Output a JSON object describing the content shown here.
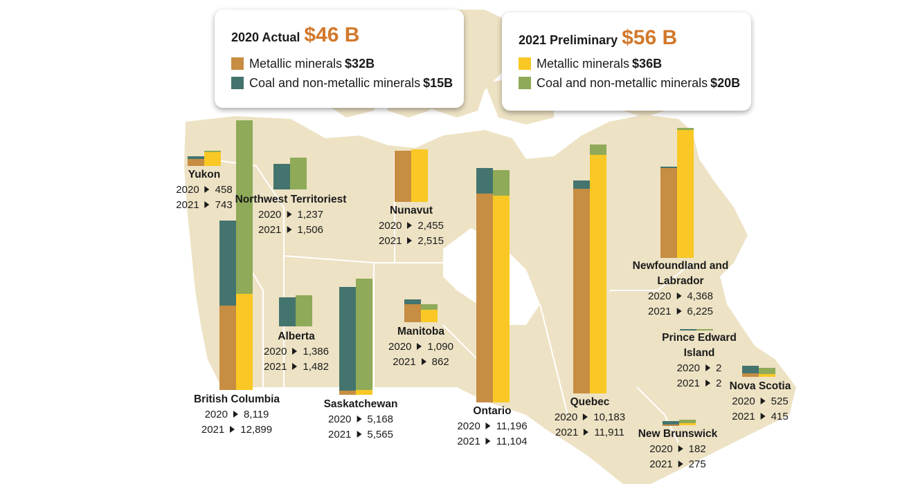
{
  "colors": {
    "land": "#ede2c4",
    "border_lines": "#ffffff",
    "metallic_2020": "#c78d42",
    "nonmetallic_2020": "#44746e",
    "metallic_2021": "#f9c824",
    "nonmetallic_2021": "#8faa58",
    "total_accent": "#d2782a"
  },
  "legend_2020": {
    "title": "2020 Actual",
    "total": "$46 B",
    "items": [
      {
        "label": "Metallic minerals",
        "value": "$32B"
      },
      {
        "label": "Coal and non-metallic minerals",
        "value": "$15B"
      }
    ]
  },
  "legend_2021": {
    "title": "2021 Preliminary",
    "total": "$56 B",
    "items": [
      {
        "label": "Metallic minerals",
        "value": "$36B"
      },
      {
        "label": "Coal and non-metallic minerals",
        "value": "$20B"
      }
    ]
  },
  "chart_data": {
    "type": "bar",
    "title": "",
    "units": "$ millions",
    "series": [
      {
        "name": "Metallic minerals (2020)"
      },
      {
        "name": "Coal and non-metallic minerals (2020)"
      },
      {
        "name": "Metallic minerals (2021)"
      },
      {
        "name": "Coal and non-metallic minerals (2021)"
      }
    ],
    "provinces": [
      {
        "name": "Yukon",
        "y2020": "2020",
        "y2021": "2021",
        "v2020_text": "458",
        "v2021_text": "743",
        "v2020": 458,
        "v2021": 743,
        "metallic_2020": 330,
        "nonmetallic_2020": 128,
        "metallic_2021": 650,
        "nonmetallic_2021": 93
      },
      {
        "name": "Northwest Territoriest",
        "y2020": "2020",
        "y2021": "2021",
        "v2020_text": "1,237",
        "v2021_text": "1,506",
        "v2020": 1237,
        "v2021": 1506,
        "metallic_2020": 0,
        "nonmetallic_2020": 1237,
        "metallic_2021": 0,
        "nonmetallic_2021": 1506
      },
      {
        "name": "Nunavut",
        "y2020": "2020",
        "y2021": "2021",
        "v2020_text": "2,455",
        "v2021_text": "2,515",
        "v2020": 2455,
        "v2021": 2515,
        "metallic_2020": 2455,
        "nonmetallic_2020": 0,
        "metallic_2021": 2515,
        "nonmetallic_2021": 0
      },
      {
        "name": "British Columbia",
        "y2020": "2020",
        "y2021": "2021",
        "v2020_text": "8,119",
        "v2021_text": "12,899",
        "v2020": 8119,
        "v2021": 12899,
        "metallic_2020": 4050,
        "nonmetallic_2020": 4069,
        "metallic_2021": 4600,
        "nonmetallic_2021": 8299
      },
      {
        "name": "Alberta",
        "y2020": "2020",
        "y2021": "2021",
        "v2020_text": "1,386",
        "v2021_text": "1,482",
        "v2020": 1386,
        "v2021": 1482,
        "metallic_2020": 0,
        "nonmetallic_2020": 1386,
        "metallic_2021": 0,
        "nonmetallic_2021": 1482
      },
      {
        "name": "Saskatchewan",
        "y2020": "2020",
        "y2021": "2021",
        "v2020_text": "5,168",
        "v2021_text": "5,565",
        "v2020": 5168,
        "v2021": 5565,
        "metallic_2020": 200,
        "nonmetallic_2020": 4968,
        "metallic_2021": 230,
        "nonmetallic_2021": 5335
      },
      {
        "name": "Manitoba",
        "y2020": "2020",
        "y2021": "2021",
        "v2020_text": "1,090",
        "v2021_text": "862",
        "v2020": 1090,
        "v2021": 862,
        "metallic_2020": 870,
        "nonmetallic_2020": 220,
        "metallic_2021": 600,
        "nonmetallic_2021": 262
      },
      {
        "name": "Ontario",
        "y2020": "2020",
        "y2021": "2021",
        "v2020_text": "11,196",
        "v2021_text": "11,104",
        "v2020": 11196,
        "v2021": 11104,
        "metallic_2020": 10000,
        "nonmetallic_2020": 1196,
        "metallic_2021": 9900,
        "nonmetallic_2021": 1204
      },
      {
        "name": "Quebec",
        "y2020": "2020",
        "y2021": "2021",
        "v2020_text": "10,183",
        "v2021_text": "11,911",
        "v2020": 10183,
        "v2021": 11911,
        "metallic_2020": 9800,
        "nonmetallic_2020": 383,
        "metallic_2021": 11400,
        "nonmetallic_2021": 511
      },
      {
        "name": "Newfoundland and Labrador",
        "y2020": "2020",
        "y2021": "2021",
        "v2020_text": "4,368",
        "v2021_text": "6,225",
        "v2020": 4368,
        "v2021": 6225,
        "metallic_2020": 4300,
        "nonmetallic_2020": 68,
        "metallic_2021": 6125,
        "nonmetallic_2021": 100
      },
      {
        "name": "Prince Edward Island",
        "y2020": "2020",
        "y2021": "2021",
        "v2020_text": "2",
        "v2021_text": "2",
        "v2020": 2,
        "v2021": 2,
        "metallic_2020": 0,
        "nonmetallic_2020": 2,
        "metallic_2021": 0,
        "nonmetallic_2021": 2
      },
      {
        "name": "New Brunswick",
        "y2020": "2020",
        "y2021": "2021",
        "v2020_text": "182",
        "v2021_text": "275",
        "v2020": 182,
        "v2021": 275,
        "metallic_2020": 30,
        "nonmetallic_2020": 152,
        "metallic_2021": 100,
        "nonmetallic_2021": 175
      },
      {
        "name": "Nova Scotia",
        "y2020": "2020",
        "y2021": "2021",
        "v2020_text": "525",
        "v2021_text": "415",
        "v2020": 525,
        "v2021": 415,
        "metallic_2020": 175,
        "nonmetallic_2020": 350,
        "metallic_2021": 125,
        "nonmetallic_2021": 290
      }
    ]
  }
}
